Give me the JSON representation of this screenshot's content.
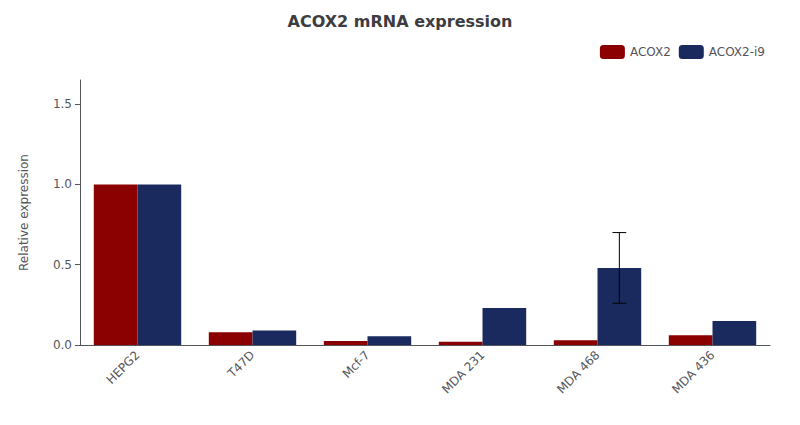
{
  "chart_data": {
    "type": "bar",
    "title": "ACOX2 mRNA expression",
    "ylabel": "Relative expression",
    "categories": [
      "HEPG2",
      "T47D",
      "Mcf-7",
      "MDA 231",
      "MDA 468",
      "MDA 436"
    ],
    "series": [
      {
        "name": "ACOX2",
        "color": "#8B0000",
        "values": [
          1.0,
          0.08,
          0.025,
          0.02,
          0.03,
          0.06
        ]
      },
      {
        "name": "ACOX2-i9",
        "color": "#1a2a5e",
        "values": [
          1.0,
          0.09,
          0.055,
          0.23,
          0.48,
          0.15
        ],
        "errors": [
          0.0,
          0.0,
          0.0,
          0.0,
          0.22,
          0.0
        ]
      }
    ],
    "ylim": [
      0,
      1.65
    ],
    "yticks": [
      {
        "value": 0.0,
        "label": "0.0"
      },
      {
        "value": 0.5,
        "label": "0.5"
      },
      {
        "value": 1.0,
        "label": "1.0"
      },
      {
        "value": 1.5,
        "label": "1.5"
      }
    ],
    "legend": "upper right",
    "grid": false
  }
}
